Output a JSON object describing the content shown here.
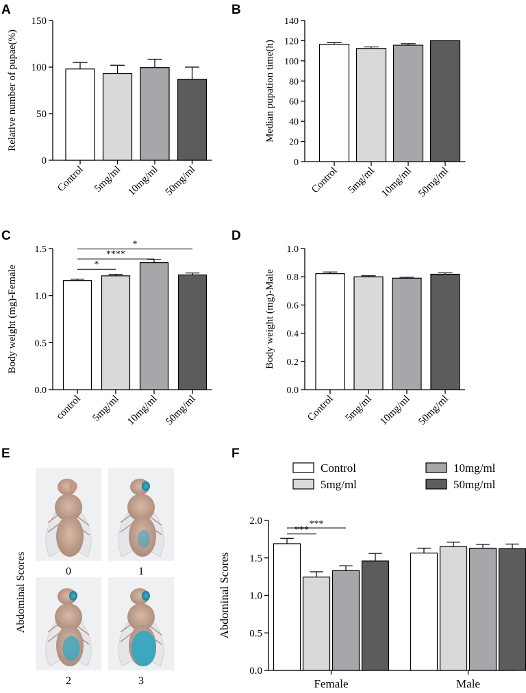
{
  "colors": {
    "control": "#ffffff",
    "d5": "#d9d9d9",
    "d10": "#a6a6ab",
    "d50": "#5c5c5c",
    "axis": "#000000"
  },
  "panels": {
    "A": {
      "letter": "A"
    },
    "B": {
      "letter": "B"
    },
    "C": {
      "letter": "C"
    },
    "D": {
      "letter": "D"
    },
    "E": {
      "letter": "E"
    },
    "F": {
      "letter": "F"
    }
  },
  "chart_data": [
    {
      "id": "A",
      "type": "bar",
      "title": "",
      "ylabel": "Relative number of pupae(%)",
      "xlabel": "",
      "categories": [
        "Control",
        "5mg/ml",
        "10mg/ml",
        "50mg/ml"
      ],
      "values": [
        98,
        93,
        99.5,
        87
      ],
      "errors": [
        7,
        9,
        9,
        13
      ],
      "ylim": [
        0,
        150
      ],
      "yticks": [
        0,
        50,
        100,
        150
      ],
      "ytick_labels": [
        "0",
        "50",
        "100",
        "150"
      ],
      "fills": [
        "control",
        "d5",
        "d10",
        "d50"
      ],
      "significance": []
    },
    {
      "id": "B",
      "type": "bar",
      "title": "",
      "ylabel": "Median pupation time(h)",
      "xlabel": "",
      "categories": [
        "Control",
        "5mg/ml",
        "10mg/ml",
        "50mg/ml"
      ],
      "values": [
        116.5,
        112.3,
        115.5,
        120
      ],
      "errors": [
        1.5,
        1.5,
        1.5,
        0
      ],
      "ylim": [
        0,
        140
      ],
      "yticks": [
        0,
        20,
        40,
        60,
        80,
        100,
        120,
        140
      ],
      "ytick_labels": [
        "0",
        "20",
        "40",
        "60",
        "80",
        "100",
        "120",
        "140"
      ],
      "fills": [
        "control",
        "d5",
        "d10",
        "d50"
      ],
      "significance": []
    },
    {
      "id": "C",
      "type": "bar",
      "title": "",
      "ylabel": "Body weight (mg)-Female",
      "xlabel": "",
      "categories": [
        "control",
        "5mg/ml",
        "10mg/ml",
        "50mg/ml"
      ],
      "values": [
        1.16,
        1.21,
        1.35,
        1.22
      ],
      "errors": [
        0.015,
        0.015,
        0.035,
        0.02
      ],
      "ylim": [
        0,
        1.5
      ],
      "yticks": [
        0,
        0.5,
        1.0,
        1.5
      ],
      "ytick_labels": [
        "0.0",
        "0.5",
        "1.0",
        "1.5"
      ],
      "fills": [
        "control",
        "d5",
        "d10",
        "d50"
      ],
      "significance": [
        {
          "from": 0,
          "to": 1,
          "level": 1.28,
          "label": "*"
        },
        {
          "from": 0,
          "to": 2,
          "level": 1.39,
          "label": "****"
        },
        {
          "from": 0,
          "to": 3,
          "level": 1.495,
          "label": "*"
        }
      ]
    },
    {
      "id": "D",
      "type": "bar",
      "title": "",
      "ylabel": "Body weight (mg)-Male",
      "xlabel": "",
      "categories": [
        "Control",
        "5mg/ml",
        "10mg/ml",
        "50mg/ml"
      ],
      "values": [
        0.822,
        0.8,
        0.79,
        0.818
      ],
      "errors": [
        0.012,
        0.007,
        0.007,
        0.01
      ],
      "ylim": [
        0,
        1.0
      ],
      "yticks": [
        0,
        0.2,
        0.4,
        0.6,
        0.8,
        1.0
      ],
      "ytick_labels": [
        "0.0",
        "0.2",
        "0.4",
        "0.6",
        "0.8",
        "1.0"
      ],
      "fills": [
        "control",
        "d5",
        "d10",
        "d50"
      ],
      "significance": []
    },
    {
      "id": "F",
      "type": "bar",
      "title": "",
      "ylabel": "Abdominal Scores",
      "xlabel": "",
      "categories": [
        "Female",
        "Male"
      ],
      "series": [
        {
          "name": "Control",
          "fill": "control",
          "values": [
            1.69,
            1.565
          ],
          "errors": [
            0.07,
            0.065
          ]
        },
        {
          "name": "5mg/ml",
          "fill": "d5",
          "values": [
            1.245,
            1.65
          ],
          "errors": [
            0.07,
            0.06
          ]
        },
        {
          "name": "10mg/ml",
          "fill": "d10",
          "values": [
            1.33,
            1.63
          ],
          "errors": [
            0.065,
            0.05
          ]
        },
        {
          "name": "50mg/ml",
          "fill": "d50",
          "values": [
            1.46,
            1.625
          ],
          "errors": [
            0.1,
            0.06
          ]
        }
      ],
      "ylim": [
        0,
        2.0
      ],
      "yticks": [
        0,
        0.5,
        1.0,
        1.5,
        2.0
      ],
      "ytick_labels": [
        "0.0",
        "0.5",
        "1.0",
        "1.5",
        "2.0"
      ],
      "legend_position": "top",
      "significance": [
        {
          "group": 0,
          "from": 0,
          "to": 1,
          "level": 1.82,
          "label": "***"
        },
        {
          "group": 0,
          "from": 0,
          "to": 2,
          "level": 1.9,
          "label": "***"
        }
      ]
    }
  ],
  "photo_panel": {
    "ylabel": "Abdominal Scores",
    "images": [
      {
        "name": "fly-score-0",
        "score": "0",
        "abdomen_blue": 0.0
      },
      {
        "name": "fly-score-1",
        "score": "1",
        "abdomen_blue": 0.35
      },
      {
        "name": "fly-score-2",
        "score": "2",
        "abdomen_blue": 0.7
      },
      {
        "name": "fly-score-3",
        "score": "3",
        "abdomen_blue": 1.0
      }
    ]
  }
}
